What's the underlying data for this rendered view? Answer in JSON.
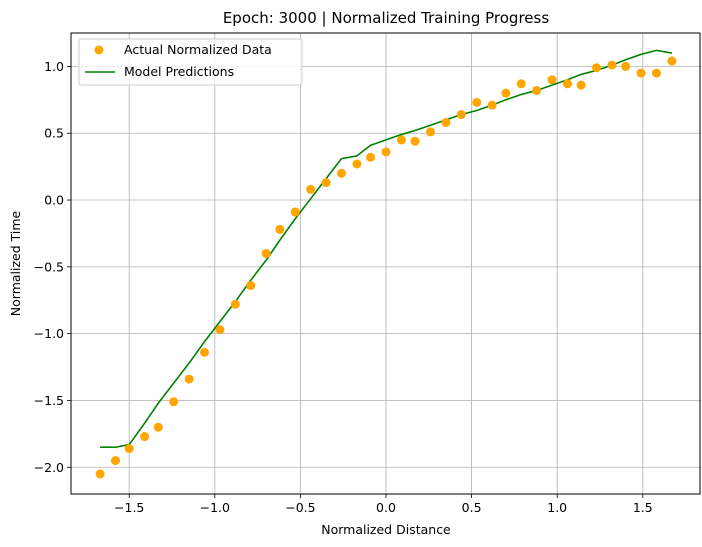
{
  "chart_data": {
    "type": "scatter",
    "title": "Epoch: 3000 | Normalized Training Progress",
    "xlabel": "Normalized Distance",
    "ylabel": "Normalized Time",
    "xlim": [
      -1.84,
      1.84
    ],
    "ylim": [
      -2.2,
      1.25
    ],
    "xticks": [
      -1.5,
      -1.0,
      -0.5,
      0.0,
      0.5,
      1.0,
      1.5
    ],
    "xtick_labels": [
      "−1.5",
      "−1.0",
      "−0.5",
      "0.0",
      "0.5",
      "1.0",
      "1.5"
    ],
    "yticks": [
      -2.0,
      -1.5,
      -1.0,
      -0.5,
      0.0,
      0.5,
      1.0
    ],
    "ytick_labels": [
      "−2.0",
      "−1.5",
      "−1.0",
      "−0.5",
      "0.0",
      "0.5",
      "1.0"
    ],
    "grid": true,
    "legend_position": "top-left",
    "series": [
      {
        "name": "Actual Normalized Data",
        "kind": "scatter",
        "color": "#ffa500",
        "x": [
          -1.67,
          -1.58,
          -1.5,
          -1.41,
          -1.33,
          -1.24,
          -1.15,
          -1.06,
          -0.97,
          -0.88,
          -0.79,
          -0.7,
          -0.62,
          -0.53,
          -0.44,
          -0.35,
          -0.26,
          -0.17,
          -0.09,
          0.0,
          0.09,
          0.17,
          0.26,
          0.35,
          0.44,
          0.53,
          0.62,
          0.7,
          0.79,
          0.88,
          0.97,
          1.06,
          1.14,
          1.23,
          1.32,
          1.4,
          1.49,
          1.58,
          1.67
        ],
        "y": [
          -2.05,
          -1.95,
          -1.86,
          -1.77,
          -1.7,
          -1.51,
          -1.34,
          -1.14,
          -0.97,
          -0.78,
          -0.64,
          -0.4,
          -0.22,
          -0.09,
          0.08,
          0.13,
          0.2,
          0.27,
          0.32,
          0.36,
          0.45,
          0.44,
          0.51,
          0.58,
          0.64,
          0.73,
          0.71,
          0.8,
          0.87,
          0.82,
          0.9,
          0.87,
          0.86,
          0.99,
          1.01,
          1.0,
          0.95,
          0.95,
          1.04
        ]
      },
      {
        "name": "Model Predictions",
        "kind": "line",
        "color": "#008000",
        "x": [
          -1.67,
          -1.58,
          -1.5,
          -1.41,
          -1.33,
          -1.24,
          -1.15,
          -1.06,
          -0.97,
          -0.88,
          -0.79,
          -0.7,
          -0.62,
          -0.53,
          -0.44,
          -0.35,
          -0.26,
          -0.17,
          -0.09,
          0.0,
          0.09,
          0.17,
          0.26,
          0.35,
          0.44,
          0.53,
          0.62,
          0.7,
          0.79,
          0.88,
          0.97,
          1.06,
          1.14,
          1.23,
          1.32,
          1.4,
          1.49,
          1.58,
          1.67
        ],
        "y": [
          -1.85,
          -1.85,
          -1.83,
          -1.67,
          -1.52,
          -1.37,
          -1.22,
          -1.06,
          -0.91,
          -0.76,
          -0.6,
          -0.45,
          -0.3,
          -0.14,
          0.01,
          0.16,
          0.31,
          0.33,
          0.41,
          0.45,
          0.49,
          0.52,
          0.56,
          0.6,
          0.64,
          0.67,
          0.71,
          0.75,
          0.79,
          0.82,
          0.86,
          0.9,
          0.94,
          0.97,
          1.01,
          1.05,
          1.09,
          1.12,
          1.1
        ]
      }
    ]
  }
}
